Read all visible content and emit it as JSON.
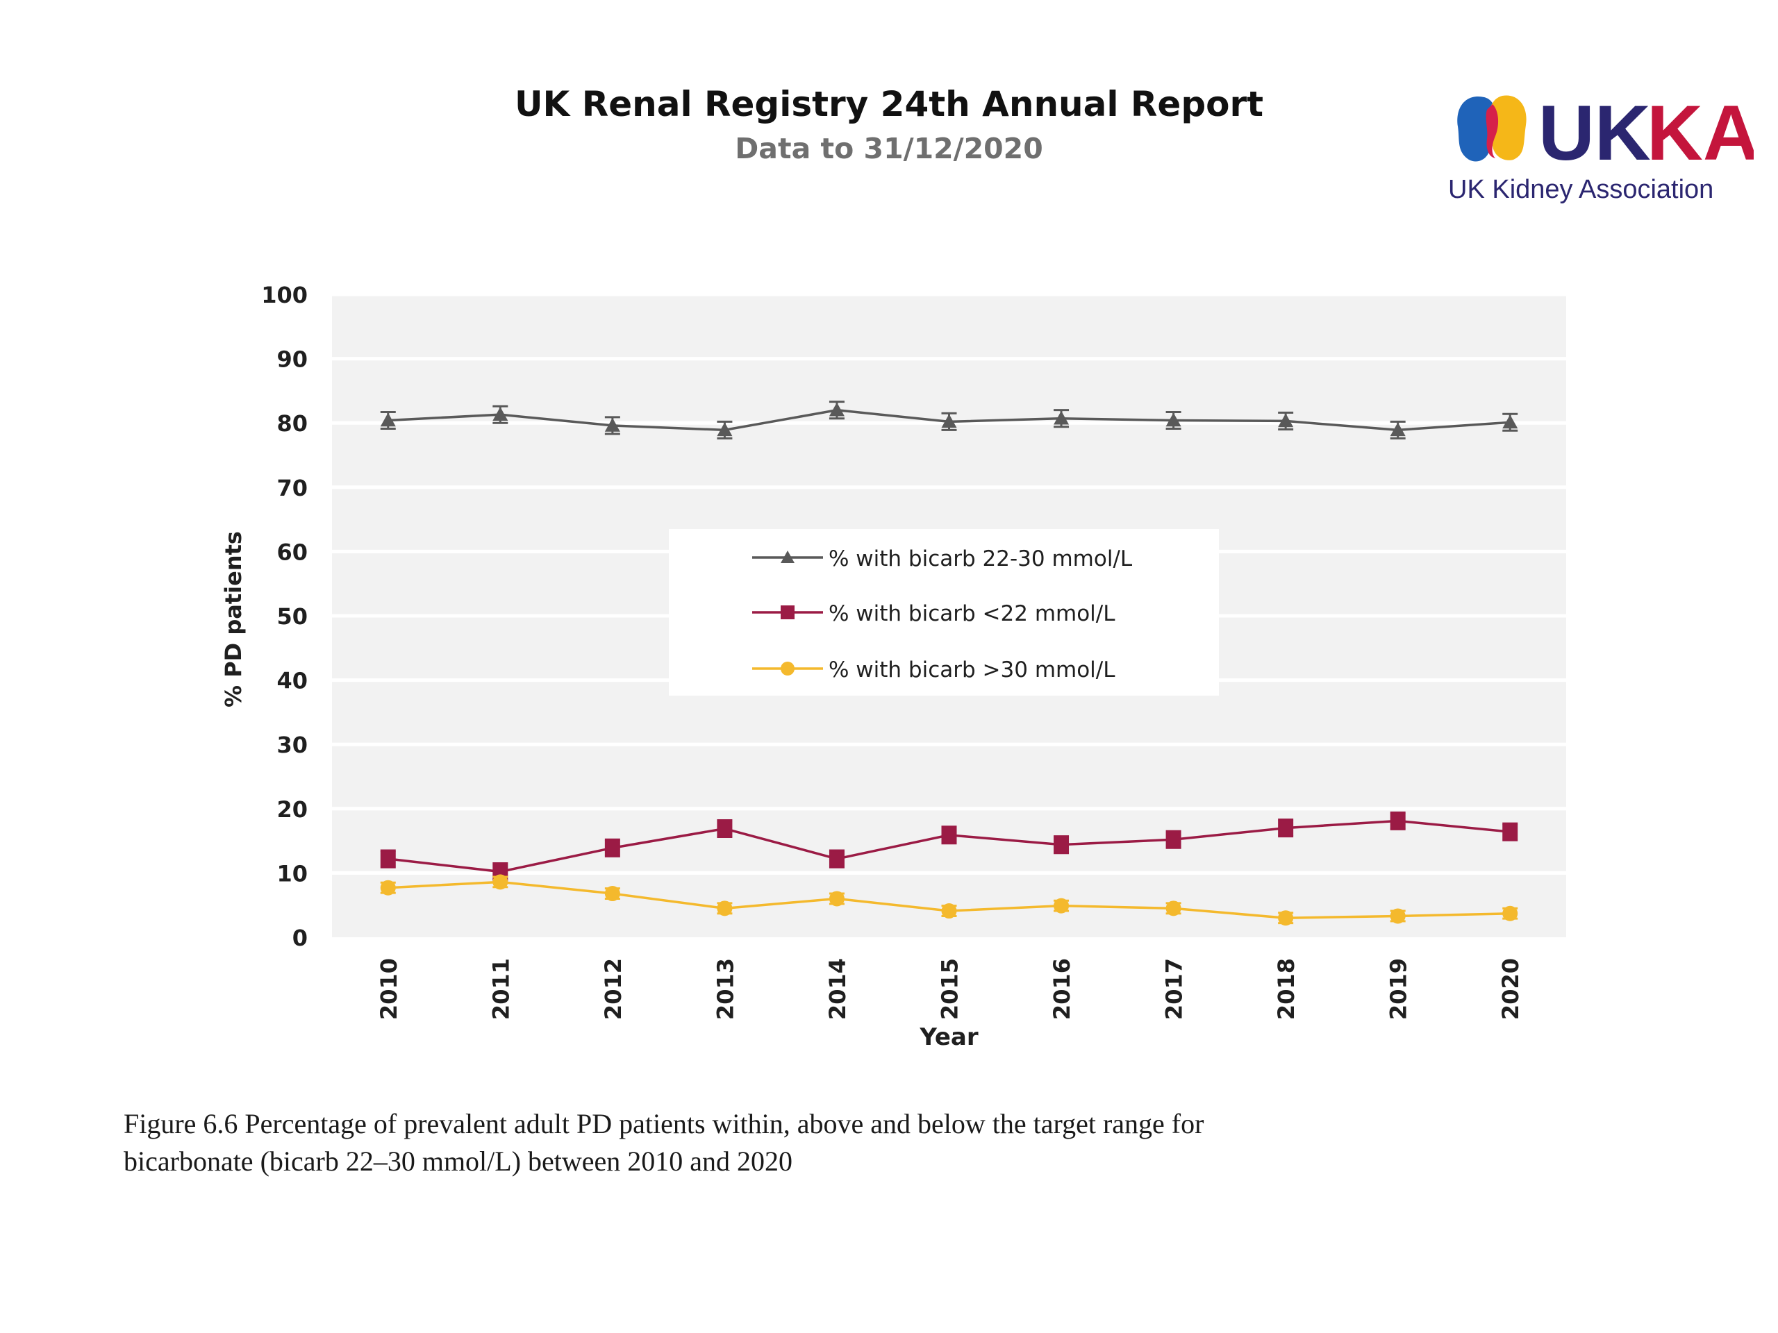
{
  "header": {
    "title": "UK Renal Registry 24th Annual Report",
    "subtitle": "Data to 31/12/2020"
  },
  "logo": {
    "wordmark": "UKKA",
    "tagline": "UK Kidney Association",
    "colors": {
      "blue": "#1f63b9",
      "red": "#d6204a",
      "yellow": "#f5b718",
      "purple": "#2b2670",
      "crimson": "#c4153c"
    }
  },
  "caption": {
    "line1": "Figure 6.6 Percentage of prevalent adult PD patients within, above and below the target range for",
    "line2": "bicarbonate (bicarb 22–30 mmol/L) between 2010 and 2020"
  },
  "chart_data": {
    "type": "line",
    "categories": [
      "2010",
      "2011",
      "2012",
      "2013",
      "2014",
      "2015",
      "2016",
      "2017",
      "2018",
      "2019",
      "2020"
    ],
    "xlabel": "Year",
    "ylabel": "% PD patients",
    "ylim": [
      0,
      100
    ],
    "yticks": [
      0,
      10,
      20,
      30,
      40,
      50,
      60,
      70,
      80,
      90,
      100
    ],
    "grid": true,
    "legend_position": "center",
    "plot_background": "#f2f2f2",
    "series": [
      {
        "name": "% with bicarb 22-30 mmol/L",
        "color": "#595959",
        "marker": "triangle",
        "values": [
          80.4,
          81.3,
          79.6,
          78.9,
          82.0,
          80.2,
          80.7,
          80.4,
          80.3,
          78.9,
          80.1
        ],
        "errors": [
          1.3,
          1.3,
          1.3,
          1.3,
          1.3,
          1.3,
          1.3,
          1.3,
          1.3,
          1.3,
          1.3
        ]
      },
      {
        "name": "% with bicarb <22 mmol/L",
        "color": "#9b1b45",
        "marker": "square",
        "values": [
          12.2,
          10.2,
          13.9,
          16.9,
          12.2,
          15.9,
          14.4,
          15.2,
          17.0,
          18.1,
          16.4
        ],
        "errors": [
          1.3,
          1.3,
          1.3,
          1.3,
          1.3,
          1.3,
          1.3,
          1.3,
          1.3,
          1.3,
          1.3
        ]
      },
      {
        "name": "% with bicarb >30 mmol/L",
        "color": "#f4b92d",
        "marker": "circle",
        "values": [
          7.7,
          8.6,
          6.8,
          4.5,
          6.0,
          4.1,
          4.9,
          4.5,
          3.0,
          3.3,
          3.7
        ],
        "errors": [
          0.8,
          0.8,
          0.8,
          0.8,
          0.8,
          0.8,
          0.8,
          0.8,
          0.8,
          0.8,
          0.8
        ]
      }
    ]
  }
}
